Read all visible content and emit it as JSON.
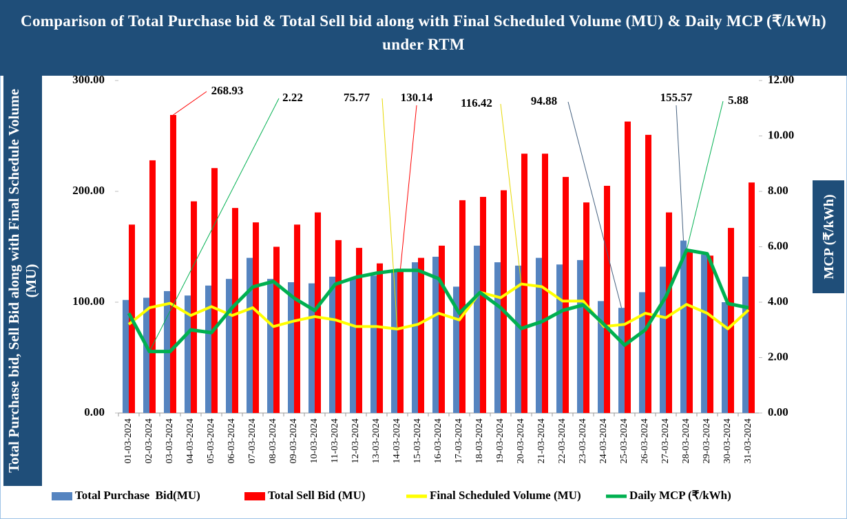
{
  "chart_data": {
    "type": "bar_line",
    "title": "Comparison of Total Purchase bid & Total Sell bid along with Final Scheduled Volume (MU) & Daily MCP (₹/kWh) under RTM",
    "y_label": "Total Purchase bid, Sell Bid along with Final Schedule Volume (MU)",
    "y2_label": "MCP (₹/kWh)",
    "categories": [
      "01-03-2024",
      "02-03-2024",
      "03-03-2024",
      "04-03-2024",
      "05-03-2024",
      "06-03-2024",
      "07-03-2024",
      "08-03-2024",
      "09-03-2024",
      "10-03-2024",
      "11-03-2024",
      "12-03-2024",
      "13-03-2024",
      "14-03-2024",
      "15-03-2024",
      "16-03-2024",
      "17-03-2024",
      "18-03-2024",
      "19-03-2024",
      "20-03-2024",
      "21-03-2024",
      "22-03-2024",
      "23-03-2024",
      "24-03-2024",
      "25-03-2024",
      "26-03-2024",
      "27-03-2024",
      "28-03-2024",
      "29-03-2024",
      "30-03-2024",
      "31-03-2024"
    ],
    "ylim": [
      0,
      300
    ],
    "yticks": [
      {
        "value": 0,
        "label": "0.00"
      },
      {
        "value": 100,
        "label": "100.00"
      },
      {
        "value": 200,
        "label": "200.00"
      },
      {
        "value": 300,
        "label": "300.00"
      }
    ],
    "y2lim": [
      0,
      12
    ],
    "y2ticks": [
      {
        "value": 0,
        "label": "0.00"
      },
      {
        "value": 2,
        "label": "2.00"
      },
      {
        "value": 4,
        "label": "4.00"
      },
      {
        "value": 6,
        "label": "6.00"
      },
      {
        "value": 8,
        "label": "8.00"
      },
      {
        "value": 10,
        "label": "10.00"
      },
      {
        "value": 12,
        "label": "12.00"
      }
    ],
    "legend": "bottom",
    "series": [
      {
        "name": "Total Purchase  Bid(MU)",
        "type": "bar",
        "color": "#5584c0",
        "values": [
          102,
          104,
          110,
          106,
          115,
          121,
          140,
          121,
          118,
          117,
          123,
          121,
          124,
          128,
          136,
          141,
          114,
          151,
          136,
          133,
          140,
          134,
          138,
          101,
          94.88,
          109,
          132,
          155.57,
          143,
          100,
          123
        ],
        "value_labels": [
          null,
          null,
          null,
          null,
          null,
          null,
          null,
          null,
          null,
          null,
          null,
          null,
          null,
          null,
          null,
          null,
          null,
          null,
          null,
          null,
          null,
          null,
          null,
          null,
          "94.88",
          null,
          null,
          "155.57",
          null,
          null,
          null
        ]
      },
      {
        "name": "Total Sell Bid (MU)",
        "type": "bar",
        "color": "#ff0000",
        "values": [
          170,
          228,
          268.93,
          191,
          221,
          185,
          172,
          150,
          170,
          181,
          156,
          149,
          135,
          130.14,
          140,
          151,
          192,
          195,
          201,
          234,
          234,
          213,
          190,
          205,
          263,
          251,
          181,
          147,
          142,
          167,
          208
        ],
        "value_labels": [
          null,
          null,
          "268.93",
          null,
          null,
          null,
          null,
          null,
          null,
          null,
          null,
          null,
          null,
          "130.14",
          null,
          null,
          null,
          null,
          null,
          null,
          null,
          null,
          null,
          null,
          null,
          null,
          null,
          null,
          null,
          null,
          null
        ]
      },
      {
        "name": "Final Scheduled Volume (MU)",
        "type": "line",
        "color": "#ffff00",
        "values": [
          80,
          95,
          99,
          88,
          96,
          88,
          95,
          78,
          83,
          87,
          84,
          78,
          78,
          75.77,
          80,
          90,
          84,
          109,
          104,
          116.42,
          114,
          101,
          101,
          78,
          80,
          90,
          86,
          98,
          90,
          76,
          93
        ],
        "value_labels": [
          null,
          null,
          null,
          null,
          null,
          null,
          null,
          null,
          null,
          null,
          null,
          null,
          null,
          "75.77",
          null,
          null,
          null,
          null,
          null,
          "116.42",
          null,
          null,
          null,
          null,
          null,
          null,
          null,
          null,
          null,
          null,
          null
        ]
      },
      {
        "name": "Daily MCP (₹/kWh)",
        "type": "line",
        "axis": "y2",
        "color": "#00b050",
        "values": [
          3.6,
          2.22,
          2.22,
          3.0,
          2.9,
          3.8,
          4.55,
          4.75,
          4.15,
          3.7,
          4.65,
          4.9,
          5.05,
          5.15,
          5.15,
          4.85,
          3.6,
          4.35,
          3.8,
          3.05,
          3.3,
          3.7,
          3.9,
          3.2,
          2.45,
          3.0,
          4.2,
          5.88,
          5.75,
          3.95,
          3.8
        ],
        "value_labels": [
          null,
          "2.22",
          null,
          null,
          null,
          null,
          null,
          null,
          null,
          null,
          null,
          null,
          null,
          null,
          null,
          null,
          null,
          null,
          null,
          null,
          null,
          null,
          null,
          null,
          null,
          null,
          null,
          "5.88",
          null,
          null,
          null
        ]
      }
    ]
  }
}
